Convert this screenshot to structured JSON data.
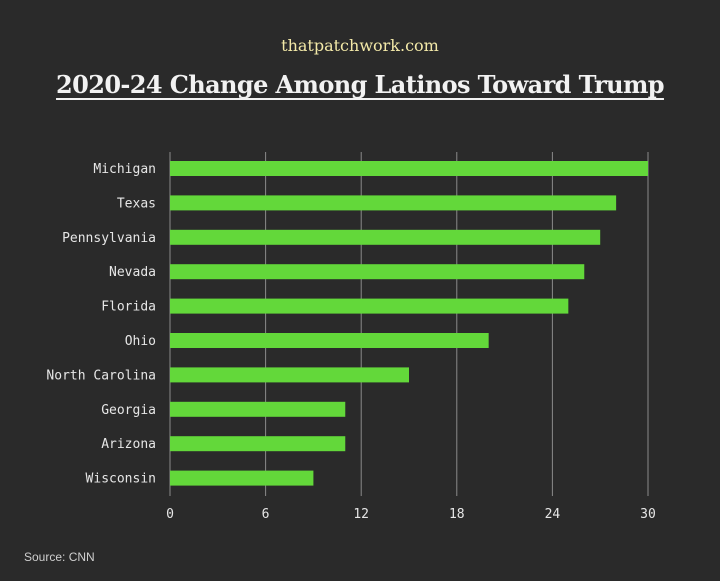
{
  "header": {
    "site": "thatpatchwork.com",
    "title": "2020-24 Change Among Latinos Toward Trump"
  },
  "footer": {
    "source": "Source: CNN"
  },
  "colors": {
    "background": "#2a2a2a",
    "bar": "#63d83a",
    "grid": "#8a8a8a",
    "site_text": "#f3e9a8"
  },
  "chart_data": {
    "type": "bar",
    "orientation": "horizontal",
    "categories": [
      "Michigan",
      "Texas",
      "Pennsylvania",
      "Nevada",
      "Florida",
      "Ohio",
      "North Carolina",
      "Georgia",
      "Arizona",
      "Wisconsin"
    ],
    "values": [
      30,
      28,
      27,
      26,
      25,
      20,
      15,
      11,
      11,
      9
    ],
    "xlim": [
      0,
      30
    ],
    "xticks": [
      0,
      6,
      12,
      18,
      24,
      30
    ],
    "grid": true,
    "legend": "none"
  }
}
